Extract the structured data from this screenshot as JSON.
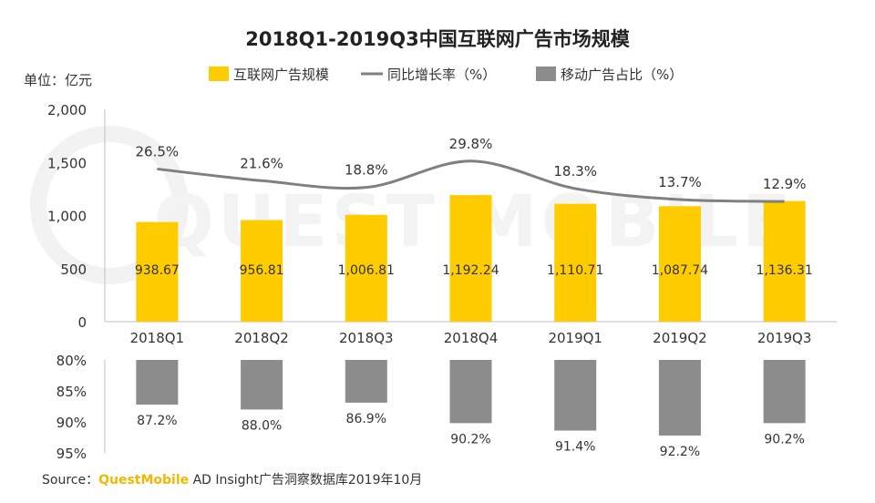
{
  "chart_data": {
    "type": "bar",
    "title": "2018Q1-2019Q3中国互联网广告市场规模",
    "unit_label": "单位：亿元",
    "categories": [
      "2018Q1",
      "2018Q2",
      "2018Q3",
      "2018Q4",
      "2019Q1",
      "2019Q2",
      "2019Q3"
    ],
    "upper_axis": {
      "ylim": [
        0,
        2000
      ],
      "ticks": [
        "0",
        "500",
        "1,000",
        "1,500",
        "2,000"
      ]
    },
    "lower_axis": {
      "ylim": [
        80,
        95
      ],
      "inverted": true,
      "ticks": [
        "80%",
        "85%",
        "90%",
        "95%"
      ]
    },
    "series": [
      {
        "name": "互联网广告规模",
        "type": "bar",
        "color": "#ffcc00",
        "values": [
          938.67,
          956.81,
          1006.81,
          1192.24,
          1110.71,
          1087.74,
          1136.31
        ],
        "labels": [
          "938.67",
          "956.81",
          "1,006.81",
          "1,192.24",
          "1,110.71",
          "1,087.74",
          "1,136.31"
        ]
      },
      {
        "name": "同比增长率（%）",
        "type": "line",
        "color": "#808080",
        "values": [
          26.5,
          21.6,
          18.8,
          29.8,
          18.3,
          13.7,
          12.9
        ],
        "labels": [
          "26.5%",
          "21.6%",
          "18.8%",
          "29.8%",
          "18.3%",
          "13.7%",
          "12.9%"
        ]
      },
      {
        "name": "移动广告占比（%）",
        "type": "bar",
        "color": "#8c8c8c",
        "values": [
          87.2,
          88.0,
          86.9,
          90.2,
          91.4,
          92.2,
          90.2
        ],
        "labels": [
          "87.2%",
          "88.0%",
          "86.9%",
          "90.2%",
          "91.4%",
          "92.2%",
          "90.2%"
        ]
      }
    ],
    "legend_position": "top",
    "grid": false,
    "watermark": "QUEST MOBILE"
  },
  "source": {
    "prefix": "Source：",
    "brand": "QuestMobile",
    "text": " AD Insight广告洞察数据库2019年10月"
  }
}
